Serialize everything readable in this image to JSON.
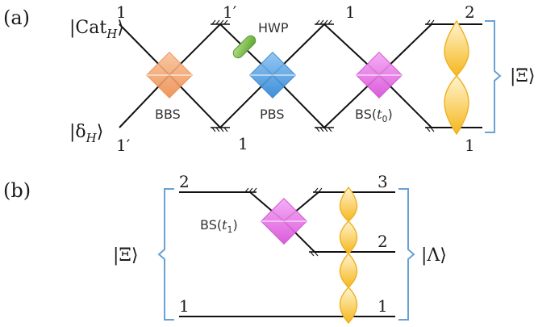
{
  "panel_a": {
    "tag": "(a)",
    "input_top": "|Cat",
    "input_top_sub": "H",
    "input_top_close": "⟩",
    "input_bottom": "|δ",
    "input_bottom_sub": "H",
    "input_bottom_close": "⟩",
    "mode_top_in": "1",
    "mode_bottom_in": "1′",
    "mode_mirror_top": "1′",
    "mode_mirror_bottom": "1",
    "mode_mirror_top2": "1",
    "mode_out_top": "2",
    "mode_out_bottom": "1",
    "bbs_label": "BBS",
    "hwp_label": "HWP",
    "pbs_label": "PBS",
    "bs_label": "BS(",
    "bs_label_t": "t",
    "bs_label_sub": "0",
    "bs_label_close": ")",
    "output_state": "|Ξ⟩"
  },
  "panel_b": {
    "tag": "(b)",
    "input_state": "|Ξ⟩",
    "output_state": "|Λ⟩",
    "mode_in_top": "2",
    "mode_in_bottom": "1",
    "mode_out_1": "3",
    "mode_out_2": "2",
    "mode_out_3": "1",
    "bs_label": "BS(",
    "bs_label_t": "t",
    "bs_label_sub": "1",
    "bs_label_close": ")"
  },
  "colors": {
    "bbs": "#f4a46b",
    "pbs": "#4a9be0",
    "bs": "#e874e8",
    "hwp": "#7ec04b",
    "mode_shape": "#f7c13a",
    "brace": "#6aa0d4"
  },
  "icons": {
    "mirror": "mirror-hatched-icon",
    "beam_splitter": "beam-splitter-cube-icon"
  }
}
